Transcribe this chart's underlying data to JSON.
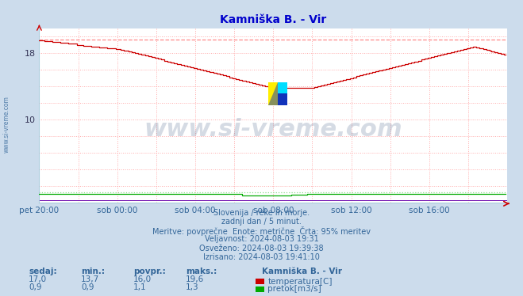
{
  "title": "Kamniška B. - Vir",
  "title_color": "#0000cc",
  "bg_color": "#ccdcec",
  "plot_bg_color": "#ffffff",
  "grid_color": "#ffaaaa",
  "grid_style": ":",
  "xlim": [
    0,
    288
  ],
  "ylim": [
    0,
    21
  ],
  "ytick_positions": [
    10,
    18
  ],
  "ytick_labels": [
    "10",
    "18"
  ],
  "xtick_positions": [
    0,
    48,
    96,
    144,
    192,
    240
  ],
  "xtick_labels": [
    "pet 20:00",
    "sob 00:00",
    "sob 04:00",
    "sob 08:00",
    "sob 12:00",
    "sob 16:00"
  ],
  "watermark": "www.si-vreme.com",
  "watermark_color": "#1a3a6a",
  "watermark_alpha": 0.18,
  "temp_color": "#cc0000",
  "flow_color": "#00aa00",
  "dashed_temp_y": 19.6,
  "dashed_flow_y": 1.3,
  "dashed_temp_color": "#ff8888",
  "dashed_flow_color": "#88dd88",
  "purple_line_color": "#6600aa",
  "arrow_color": "#cc0000",
  "info_lines": [
    "Slovenija / reke in morje.",
    "zadnji dan / 5 minut.",
    "Meritve: povprečne  Enote: metrične  Črta: 95% meritev",
    "Veljavnost: 2024-08-03 19:31",
    "Osveženo: 2024-08-03 19:39:38",
    "Izrisano: 2024-08-03 19:41:10"
  ],
  "footer_color": "#336699",
  "stats_headers": [
    "sedaj:",
    "min.:",
    "povpr.:",
    "maks.:"
  ],
  "stats_temp": [
    "17,0",
    "13,7",
    "16,0",
    "19,6"
  ],
  "stats_flow": [
    "0,9",
    "0,9",
    "1,1",
    "1,3"
  ],
  "legend_title": "Kamniška B. - Vir",
  "legend_items": [
    {
      "label": "temperatura[C]",
      "color": "#cc0000"
    },
    {
      "label": "pretok[m3/s]",
      "color": "#00aa00"
    }
  ],
  "sidebar_text": "www.si-vreme.com",
  "sidebar_color": "#336699"
}
